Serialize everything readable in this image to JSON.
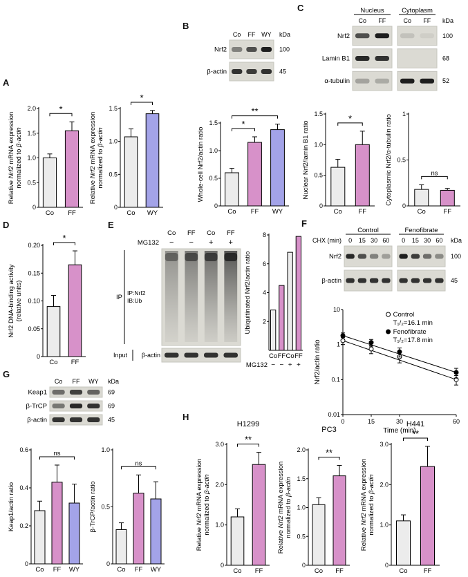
{
  "figure": {
    "panel_letters": {
      "A": "A",
      "B": "B",
      "C": "C",
      "D": "D",
      "E": "E",
      "F": "F",
      "G": "G",
      "H": "H"
    }
  },
  "colors": {
    "co": "#ececec",
    "ff": "#d791c9",
    "wy": "#a3a3e8",
    "bar_edge": "#111111",
    "blot_bg": "#dbdad3",
    "band": "#141414"
  },
  "chart_data": [
    {
      "id": "a1",
      "type": "bar",
      "ylabel": [
        "Relative Nrf2 mRNA expression",
        "normalized to β-actin"
      ],
      "ylabel_italics": [
        "Nrf2",
        "β-actin"
      ],
      "categories": [
        "Co",
        "FF"
      ],
      "values": [
        1.0,
        1.55
      ],
      "errors": [
        0.08,
        0.18
      ],
      "bar_colors": [
        "co",
        "ff"
      ],
      "ylim": [
        0,
        2.0
      ],
      "yticks": [
        "0",
        "0.5",
        "1.0",
        "1.5",
        "2.0"
      ],
      "sig": [
        {
          "a": 0,
          "b": 1,
          "label": "*"
        }
      ]
    },
    {
      "id": "a2",
      "type": "bar",
      "ylabel": [
        "Relative Nrf2 mRNA expression",
        "normalized to β-actin"
      ],
      "ylabel_italics": [
        "Nrf2",
        "β-actin"
      ],
      "categories": [
        "Co",
        "WY"
      ],
      "values": [
        1.07,
        1.42
      ],
      "errors": [
        0.12,
        0.05
      ],
      "bar_colors": [
        "co",
        "wy"
      ],
      "ylim": [
        0,
        1.5
      ],
      "yticks": [
        "0",
        "0.5",
        "1.0",
        "1.5"
      ],
      "sig": [
        {
          "a": 0,
          "b": 1,
          "label": "*"
        }
      ]
    },
    {
      "id": "b",
      "type": "bar",
      "ylabel": [
        "Whole-cell Nrf2/actin ratio"
      ],
      "categories": [
        "Co",
        "FF",
        "WY"
      ],
      "values": [
        0.6,
        1.15,
        1.38
      ],
      "errors": [
        0.08,
        0.1,
        0.1
      ],
      "bar_colors": [
        "co",
        "ff",
        "wy"
      ],
      "ylim": [
        0,
        1.5
      ],
      "yticks": [
        "0",
        "0.5",
        "1.0",
        "1.5"
      ],
      "sig": [
        {
          "a": 0,
          "b": 1,
          "label": "*"
        },
        {
          "a": 0,
          "b": 2,
          "label": "**"
        }
      ]
    },
    {
      "id": "c1",
      "type": "bar",
      "ylabel": [
        "Nuclear Nrf2/lamin B1 ratio"
      ],
      "categories": [
        "Co",
        "FF"
      ],
      "values": [
        0.63,
        1.0
      ],
      "errors": [
        0.13,
        0.22
      ],
      "bar_colors": [
        "co",
        "ff"
      ],
      "ylim": [
        0,
        1.5
      ],
      "yticks": [
        "0",
        "0.5",
        "1.0",
        "1.5"
      ],
      "sig": [
        {
          "a": 0,
          "b": 1,
          "label": "*"
        }
      ]
    },
    {
      "id": "c2",
      "type": "bar",
      "ylabel": [
        "Cytoplasmic Nrf2/α-tubulin ratio"
      ],
      "categories": [
        "Co",
        "FF"
      ],
      "values": [
        0.18,
        0.17
      ],
      "errors": [
        0.05,
        0.02
      ],
      "bar_colors": [
        "co",
        "ff"
      ],
      "ylim": [
        0,
        1.0
      ],
      "yticks": [
        "0",
        "0.5",
        "1"
      ],
      "sig": [
        {
          "a": 0,
          "b": 1,
          "label": "ns"
        }
      ]
    },
    {
      "id": "d",
      "type": "bar",
      "ylabel": [
        "Nrf2 DNA-binding activity",
        "(relative units)"
      ],
      "categories": [
        "Co",
        "FF"
      ],
      "values": [
        0.09,
        0.165
      ],
      "errors": [
        0.02,
        0.025
      ],
      "bar_colors": [
        "co",
        "ff"
      ],
      "ylim": [
        0,
        0.2
      ],
      "yticks": [
        "0",
        "0.05",
        "0.10",
        "0.15",
        "0.20"
      ],
      "sig": [
        {
          "a": 0,
          "b": 1,
          "label": "*"
        }
      ]
    },
    {
      "id": "e",
      "type": "bar",
      "ylabel": [
        "Ubiquitinated Nrf2/actin ratio"
      ],
      "categories": [
        "Co",
        "FF",
        "Co",
        "FF"
      ],
      "values": [
        2.8,
        4.5,
        6.8,
        7.9
      ],
      "bar_colors": [
        "co",
        "ff",
        "co",
        "ff"
      ],
      "ylim": [
        0,
        8
      ],
      "yticks": [
        "2",
        "4",
        "6",
        "8"
      ],
      "xrows": [
        {
          "label": "MG132",
          "cells": [
            "−",
            "−",
            "+",
            "+"
          ]
        }
      ]
    },
    {
      "id": "g1",
      "type": "bar",
      "ylabel": [
        "Keap1/actin ratio"
      ],
      "categories": [
        "Co",
        "FF",
        "WY"
      ],
      "values": [
        0.28,
        0.43,
        0.32
      ],
      "errors": [
        0.05,
        0.09,
        0.1
      ],
      "bar_colors": [
        "co",
        "ff",
        "wy"
      ],
      "ylim": [
        0,
        0.6
      ],
      "yticks": [
        "0",
        "0.2",
        "0.4",
        "0.6"
      ],
      "sig": [
        {
          "a": 0,
          "b": 2,
          "label": "ns"
        }
      ]
    },
    {
      "id": "g2",
      "type": "bar",
      "ylabel": [
        "β-TrCP/actin ratio"
      ],
      "categories": [
        "Co",
        "FF",
        "WY"
      ],
      "values": [
        0.3,
        0.62,
        0.57
      ],
      "errors": [
        0.06,
        0.16,
        0.15
      ],
      "bar_colors": [
        "co",
        "ff",
        "wy"
      ],
      "ylim": [
        0,
        1.0
      ],
      "yticks": [
        "0",
        "0.5",
        "1.0"
      ],
      "sig": [
        {
          "a": 0,
          "b": 2,
          "label": "ns"
        }
      ]
    },
    {
      "id": "h1",
      "type": "bar",
      "title": "H1299",
      "ylabel": [
        "Relative Nrf2 mRNA expression",
        "normalized to β-actin"
      ],
      "ylabel_italics": [
        "Nrf2",
        "β-actin"
      ],
      "categories": [
        "Co",
        "FF"
      ],
      "values": [
        1.2,
        2.5
      ],
      "errors": [
        0.2,
        0.3
      ],
      "bar_colors": [
        "co",
        "ff"
      ],
      "ylim": [
        0,
        3.0
      ],
      "yticks": [
        "0",
        "1.0",
        "2.0",
        "3.0"
      ],
      "sig": [
        {
          "a": 0,
          "b": 1,
          "label": "**"
        }
      ]
    },
    {
      "id": "h2",
      "type": "bar",
      "title": "PC3",
      "ylabel": [
        "Relative Nrf2 mRNA expression",
        "normalized to β-actin"
      ],
      "ylabel_italics": [
        "Nrf2",
        "β-actin"
      ],
      "categories": [
        "Co",
        "FF"
      ],
      "values": [
        1.05,
        1.55
      ],
      "errors": [
        0.12,
        0.18
      ],
      "bar_colors": [
        "co",
        "ff"
      ],
      "ylim": [
        0,
        2.0
      ],
      "yticks": [
        "0",
        "0.5",
        "1.0",
        "1.5",
        "2.0"
      ],
      "sig": [
        {
          "a": 0,
          "b": 1,
          "label": "**"
        }
      ]
    },
    {
      "id": "h3",
      "type": "bar",
      "title": "H441",
      "ylabel": [
        "Relative Nrf2 mRNA expression",
        "normalized to β-actin"
      ],
      "ylabel_italics": [
        "Nrf2",
        "β-actin"
      ],
      "categories": [
        "Co",
        "FF"
      ],
      "values": [
        1.1,
        2.45
      ],
      "errors": [
        0.15,
        0.5
      ],
      "bar_colors": [
        "co",
        "ff"
      ],
      "ylim": [
        0,
        3.0
      ],
      "yticks": [
        "0",
        "1.0",
        "2.0",
        "3.0"
      ],
      "sig": [
        {
          "a": 0,
          "b": 1,
          "label": "**"
        }
      ]
    },
    {
      "id": "f_decay",
      "type": "line",
      "ylabel": [
        "Nrf2/actin ratio"
      ],
      "xlabel": "Time (min)",
      "xticks": [
        0,
        15,
        30,
        60
      ],
      "yticks": [
        "0.01",
        "0.1",
        "1",
        "10"
      ],
      "ylog": true,
      "ylim": [
        0.01,
        10
      ],
      "series": [
        {
          "name": "Control",
          "t_half": "T₁/₂=16.1 min",
          "marker": "open",
          "x": [
            0,
            15,
            30,
            60
          ],
          "y": [
            1.3,
            0.75,
            0.45,
            0.1
          ],
          "yerr": [
            0.3,
            0.2,
            0.15,
            0.03
          ]
        },
        {
          "name": "Fenofibrate",
          "t_half": "T₁/₂=17.8 min",
          "marker": "filled",
          "x": [
            0,
            15,
            30,
            60
          ],
          "y": [
            1.8,
            1.15,
            0.62,
            0.16
          ],
          "yerr": [
            0.35,
            0.25,
            0.18,
            0.05
          ]
        }
      ]
    }
  ],
  "blots": {
    "b": {
      "id": "b",
      "groups": [
        {
          "label": "",
          "lanes": [
            "Co",
            "FF",
            "WY"
          ]
        }
      ],
      "kda_header": "kDa",
      "rows": [
        {
          "label": "Nrf2",
          "kda": "100",
          "bands": [
            [
              0.45,
              0.7,
              0.95
            ]
          ]
        },
        {
          "label": "β-actin",
          "kda": "45",
          "bands": [
            [
              0.85,
              0.8,
              0.85
            ]
          ]
        }
      ]
    },
    "c": {
      "id": "c",
      "groups": [
        {
          "label": "Nucleus",
          "lanes": [
            "Co",
            "FF"
          ]
        },
        {
          "label": "Cytoplasm",
          "lanes": [
            "Co",
            "FF"
          ]
        }
      ],
      "kda_header": "kDa",
      "rows": [
        {
          "label": "Nrf2",
          "kda": "100",
          "bands": [
            [
              0.7,
              0.95
            ],
            [
              0.12,
              0.06
            ]
          ]
        },
        {
          "label": "Lamin B1",
          "kda": "68",
          "bands": [
            [
              0.9,
              0.85
            ],
            [
              0.04,
              0.03
            ]
          ]
        },
        {
          "label": "α-tubulin",
          "kda": "52",
          "bands": [
            [
              0.28,
              0.24
            ],
            [
              0.95,
              0.95
            ]
          ]
        }
      ]
    },
    "f": {
      "id": "f",
      "lane_row_label": "CHX (min)",
      "groups": [
        {
          "label": "Control",
          "lanes": [
            "0",
            "15",
            "30",
            "60"
          ]
        },
        {
          "label": "Fenofibrate",
          "lanes": [
            "0",
            "15",
            "30",
            "60"
          ]
        }
      ],
      "kda_header": "kDa",
      "rows": [
        {
          "label": "Nrf2",
          "kda": "100",
          "bands": [
            [
              0.9,
              0.7,
              0.45,
              0.3
            ],
            [
              0.95,
              0.8,
              0.55,
              0.4
            ]
          ]
        },
        {
          "label": "β-actin",
          "kda": "45",
          "bands": [
            [
              0.85,
              0.85,
              0.85,
              0.85
            ],
            [
              0.85,
              0.85,
              0.85,
              0.85
            ]
          ]
        }
      ]
    },
    "g": {
      "id": "g",
      "groups": [
        {
          "label": "",
          "lanes": [
            "Co",
            "FF",
            "WY"
          ]
        }
      ],
      "kda_header": "kDa",
      "rows": [
        {
          "label": "Keap1",
          "kda": "69",
          "bands": [
            [
              0.55,
              0.78,
              0.6
            ]
          ]
        },
        {
          "label": "β-TrCP",
          "kda": "69",
          "bands": [
            [
              0.5,
              0.9,
              0.85
            ]
          ]
        },
        {
          "label": "β-actin",
          "kda": "45",
          "bands": [
            [
              0.85,
              0.85,
              0.85
            ]
          ]
        }
      ]
    }
  },
  "blot_e": {
    "lanes": [
      "Co",
      "FF",
      "Co",
      "FF"
    ],
    "mg132_label": "MG132",
    "mg132_signs": [
      "−",
      "−",
      "+",
      "+"
    ],
    "ip_bracket_label": "IP",
    "ip_line1": "IP:Nrf2",
    "ip_line2": "IB:Ub",
    "input_label": "Input",
    "input_band_label": "β-actin",
    "smear": [
      0.5,
      0.65,
      0.75,
      0.9
    ]
  }
}
